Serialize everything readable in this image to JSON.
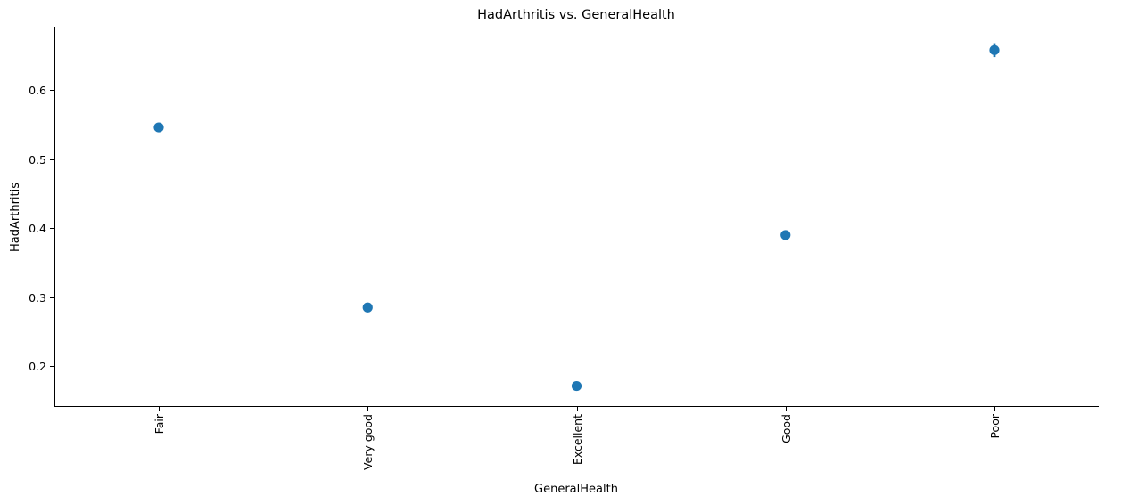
{
  "chart_data": {
    "type": "scatter",
    "title": "HadArthritis vs. GeneralHealth",
    "xlabel": "GeneralHealth",
    "ylabel": "HadArthritis",
    "categories": [
      "Fair",
      "Very good",
      "Excellent",
      "Good",
      "Poor"
    ],
    "values": [
      0.546,
      0.285,
      0.171,
      0.39,
      0.658
    ],
    "error_bars": [
      [
        0.542,
        0.55
      ],
      [
        0.283,
        0.287
      ],
      [
        0.169,
        0.173
      ],
      [
        0.388,
        0.392
      ],
      [
        0.648,
        0.668
      ]
    ],
    "ylim": [
      0.142,
      0.692
    ],
    "yticks": [
      0.2,
      0.3,
      0.4,
      0.5,
      0.6
    ],
    "ytick_labels": [
      "0.2",
      "0.3",
      "0.4",
      "0.5",
      "0.6"
    ],
    "grid": false,
    "color": "#1f77b4"
  }
}
